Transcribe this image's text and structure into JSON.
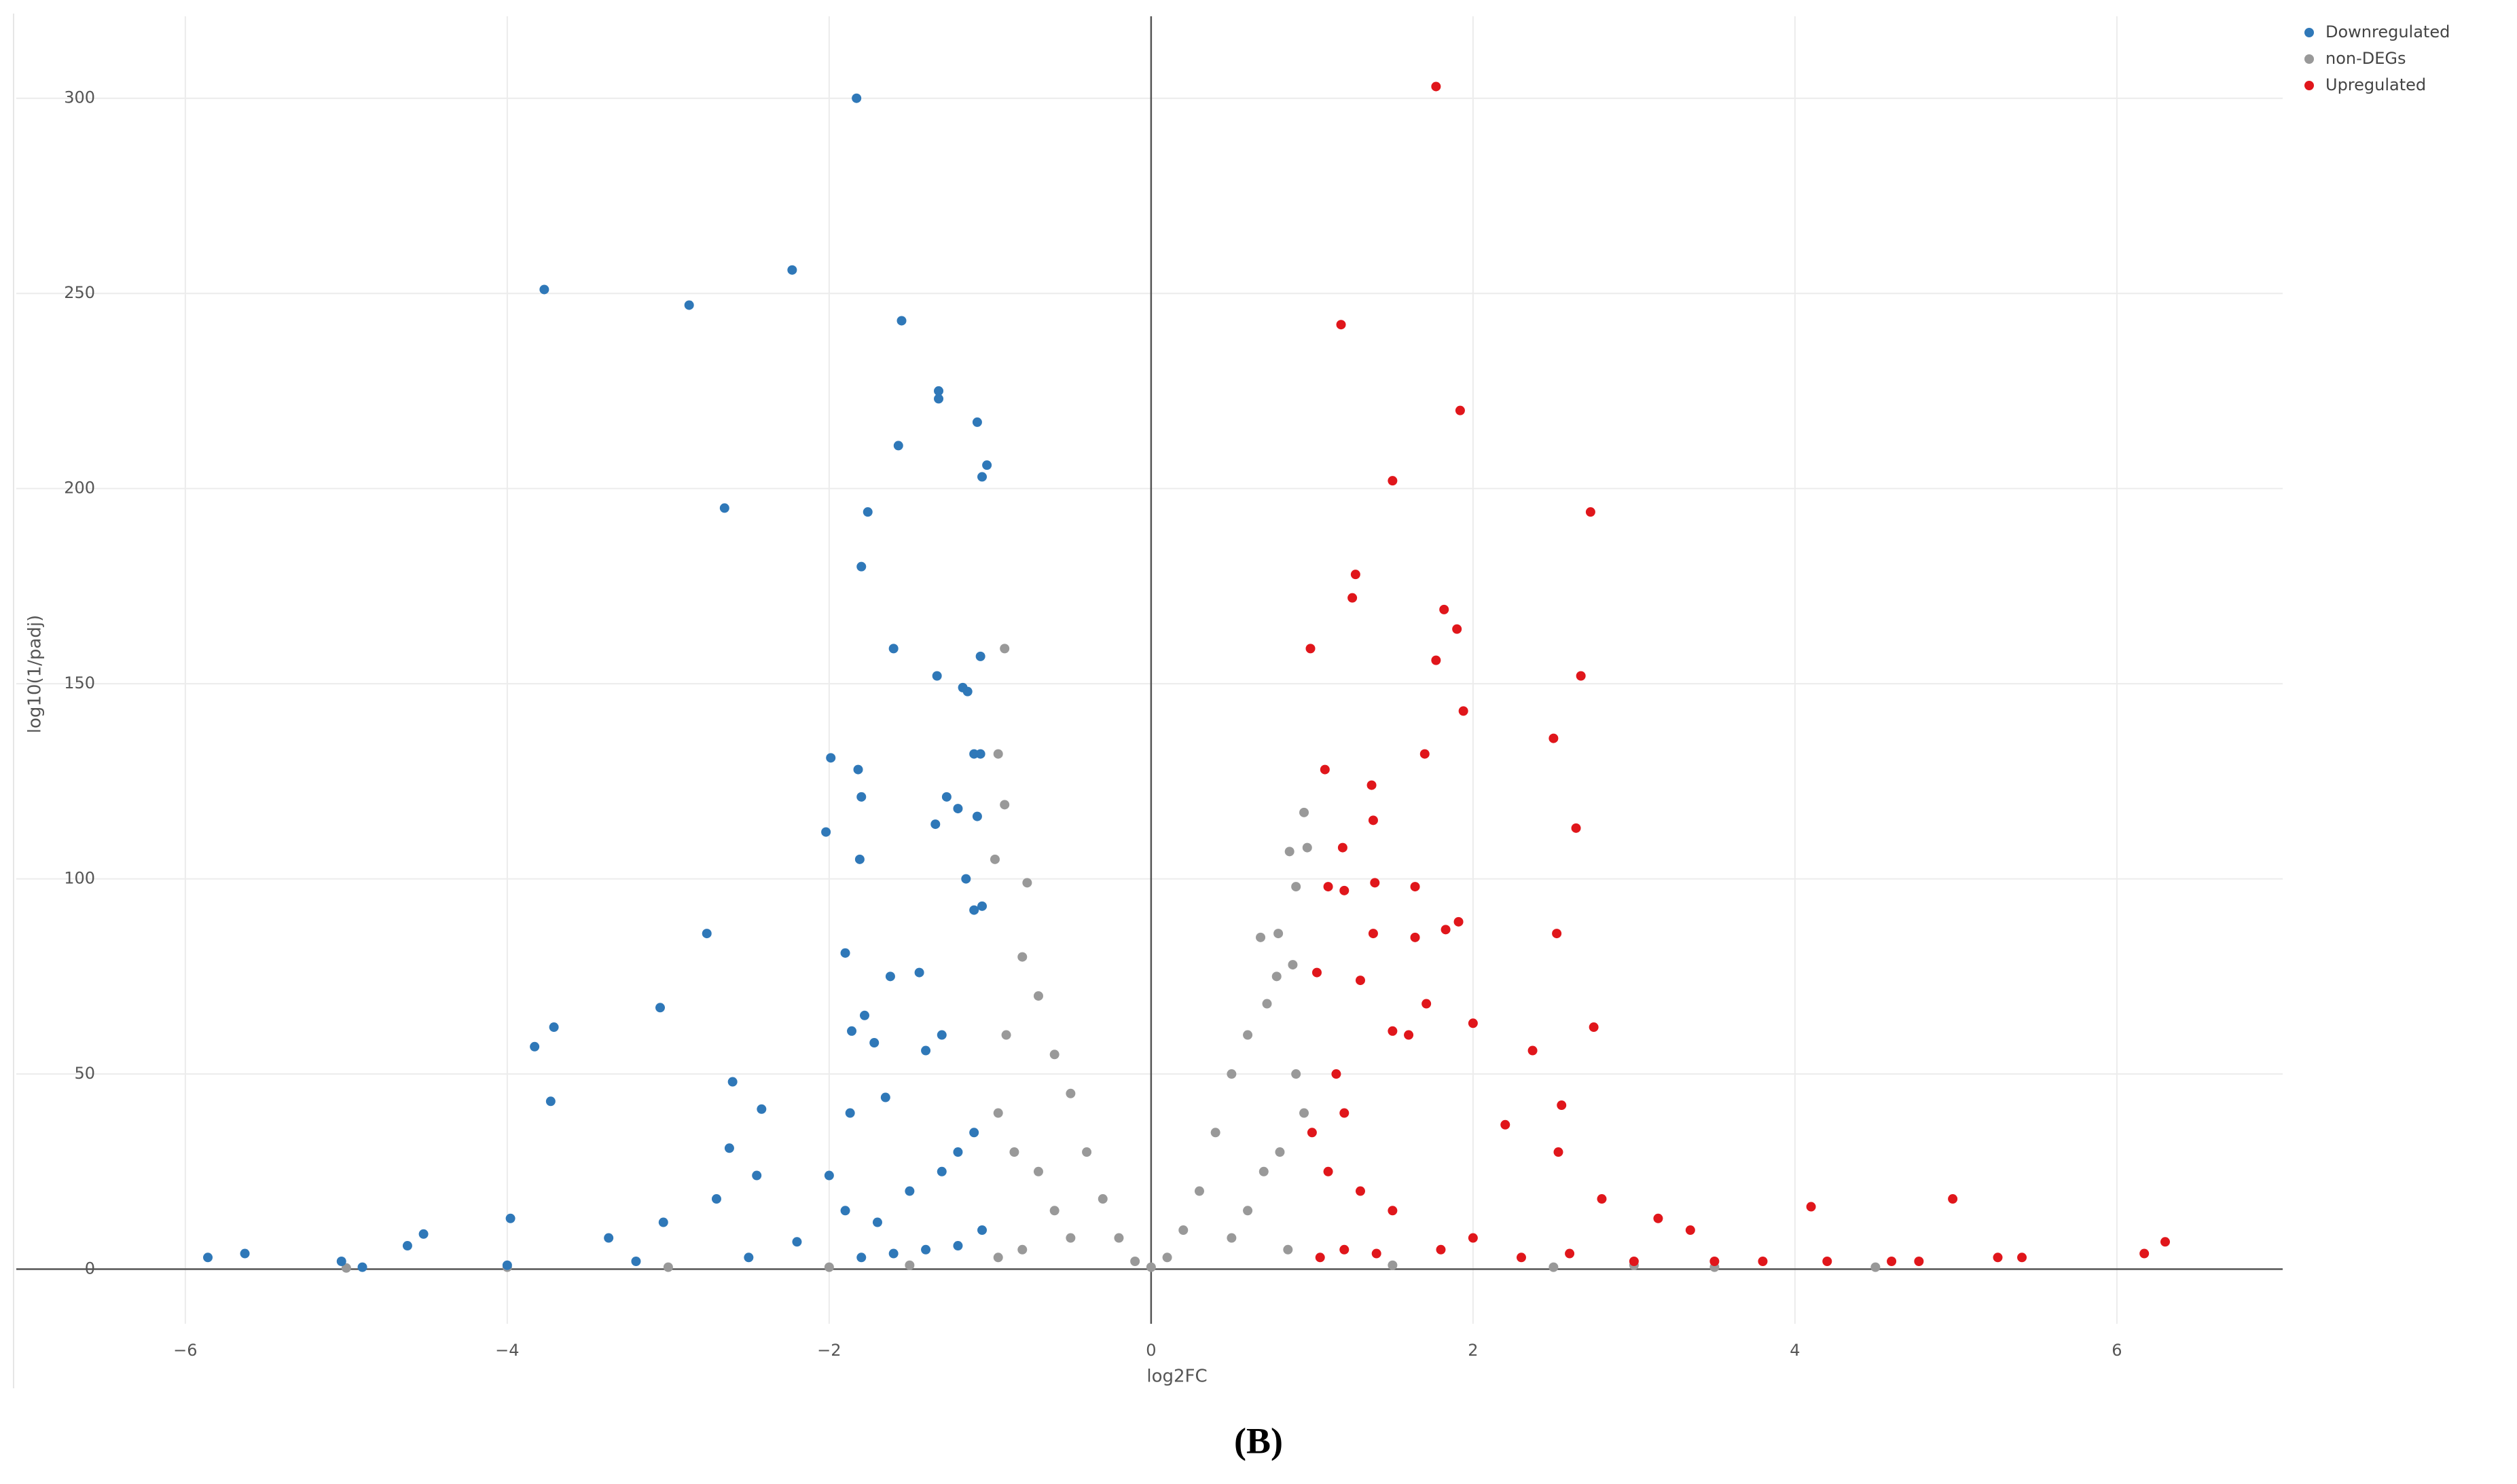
{
  "chart_data": {
    "type": "scatter",
    "x_label": "log2FC",
    "y_label": "log10(1/padj)",
    "caption": "(B)",
    "xlim": [
      -7.05,
      7.03
    ],
    "ylim": [
      -14,
      321
    ],
    "xticks": [
      {
        "value": -6,
        "label": "−6"
      },
      {
        "value": -4,
        "label": "−4"
      },
      {
        "value": -2,
        "label": "−2"
      },
      0,
      2,
      4,
      6
    ],
    "yticks": [
      0,
      50,
      100,
      150,
      200,
      250,
      300
    ],
    "grid": true,
    "zeroline": true,
    "legend": "top-right",
    "series": [
      {
        "name": "Downregulated",
        "color": "#2f78b8",
        "x": [
          -1.83,
          -3.77,
          -2.87,
          -2.23,
          -1.55,
          -1.32,
          -1.32,
          -1.08,
          -1.57,
          -1.02,
          -1.05,
          -2.65,
          -1.76,
          -1.8,
          -1.6,
          -1.33,
          -1.06,
          -1.17,
          -1.14,
          -1.1,
          -1.06,
          -1.99,
          -1.82,
          -1.8,
          -1.27,
          -1.2,
          -1.08,
          -1.34,
          -2.02,
          -1.81,
          -1.15,
          -2.76,
          -1.9,
          -1.1,
          -1.05,
          -1.44,
          -1.62,
          -3.05,
          -3.71,
          -3.83,
          -1.86,
          -1.78,
          -1.72,
          -1.3,
          -1.4,
          -2.6,
          -3.73,
          -2.42,
          -1.87,
          -1.65,
          -2.62,
          -2.45,
          -2.7,
          -2.0,
          -1.9,
          -3.98,
          -3.03,
          -4.52,
          -3.37,
          -5.63,
          -5.86,
          -5.03,
          -4.62,
          -2.2,
          -1.7,
          -1.5,
          -1.3,
          -1.2,
          -1.1,
          -1.4,
          -1.6,
          -1.2,
          -1.05,
          -1.8,
          -2.5,
          -3.2,
          -4.0,
          -4.9
        ],
        "y": [
          300,
          251,
          247,
          256,
          243,
          225,
          223,
          217,
          211,
          206,
          203,
          195,
          194,
          180,
          159,
          152,
          157,
          149,
          148,
          132,
          132,
          131,
          128,
          121,
          121,
          118,
          116,
          114,
          112,
          105,
          100,
          86,
          81,
          92,
          93,
          76,
          75,
          67,
          62,
          57,
          61,
          65,
          58,
          60,
          56,
          48,
          43,
          41,
          40,
          44,
          31,
          24,
          18,
          24,
          15,
          13,
          12,
          9,
          8,
          4,
          3,
          2,
          6,
          7,
          12,
          20,
          25,
          30,
          35,
          5,
          4,
          6,
          10,
          3,
          3,
          2,
          1,
          0.5
        ]
      },
      {
        "name": "non-DEGs",
        "color": "#999999",
        "x": [
          -0.91,
          -0.95,
          -0.91,
          -0.97,
          -0.77,
          -0.8,
          -0.7,
          -0.6,
          -0.5,
          -0.4,
          -0.3,
          -0.2,
          -0.1,
          0,
          -0.9,
          -0.95,
          -0.85,
          -0.7,
          -0.6,
          -0.5,
          -0.8,
          -0.95,
          0.95,
          0.97,
          0.86,
          0.9,
          0.79,
          0.68,
          0.78,
          0.88,
          0.72,
          0.6,
          0.5,
          0.4,
          0.3,
          0.2,
          0.1,
          0.9,
          0.95,
          0.8,
          0.7,
          0.6,
          0.5,
          0.85,
          -2,
          -3,
          -4,
          -5,
          2.5,
          3.5,
          4.5,
          -1.5,
          1.5,
          3
        ],
        "y": [
          159,
          132,
          119,
          105,
          99,
          80,
          70,
          55,
          45,
          30,
          18,
          8,
          2,
          0.5,
          60,
          40,
          30,
          25,
          15,
          8,
          5,
          3,
          117,
          108,
          107,
          98,
          86,
          85,
          75,
          78,
          68,
          60,
          50,
          35,
          20,
          10,
          3,
          50,
          40,
          30,
          25,
          15,
          8,
          5,
          0.5,
          0.5,
          0.5,
          0.3,
          0.5,
          0.5,
          0.5,
          1,
          1,
          1
        ]
      },
      {
        "name": "Upregulated",
        "color": "#e0161b",
        "x": [
          1.77,
          1.18,
          1.92,
          1.5,
          2.73,
          1.27,
          1.25,
          1.82,
          1.9,
          0.99,
          1.77,
          2.67,
          1.94,
          2.5,
          1.7,
          1.08,
          1.37,
          1.38,
          2.64,
          1.19,
          1.1,
          1.39,
          1.64,
          1.2,
          1.91,
          1.83,
          1.38,
          1.64,
          2.52,
          1.03,
          1.3,
          1.71,
          2.0,
          2.75,
          1.5,
          1.6,
          2.37,
          1.15,
          2.55,
          1.2,
          2.2,
          2.53,
          1.0,
          1.1,
          1.3,
          1.5,
          2.8,
          3.15,
          3.35,
          4.1,
          4.98,
          6.3,
          6.17,
          5.26,
          5.41,
          4.77,
          4.6,
          4.2,
          3.8,
          3.5,
          3.0,
          1.05,
          1.2,
          1.4,
          1.8,
          2.0,
          2.3,
          2.6
        ],
        "y": [
          303,
          242,
          220,
          202,
          194,
          178,
          172,
          169,
          164,
          159,
          156,
          152,
          143,
          136,
          132,
          128,
          124,
          115,
          113,
          108,
          98,
          99,
          98,
          97,
          89,
          87,
          86,
          85,
          86,
          76,
          74,
          68,
          63,
          62,
          61,
          60,
          56,
          50,
          42,
          40,
          37,
          30,
          35,
          25,
          20,
          15,
          18,
          13,
          10,
          16,
          18,
          7,
          4,
          3,
          3,
          2,
          2,
          2,
          2,
          2,
          2,
          3,
          5,
          4,
          5,
          8,
          3,
          4
        ]
      }
    ]
  }
}
